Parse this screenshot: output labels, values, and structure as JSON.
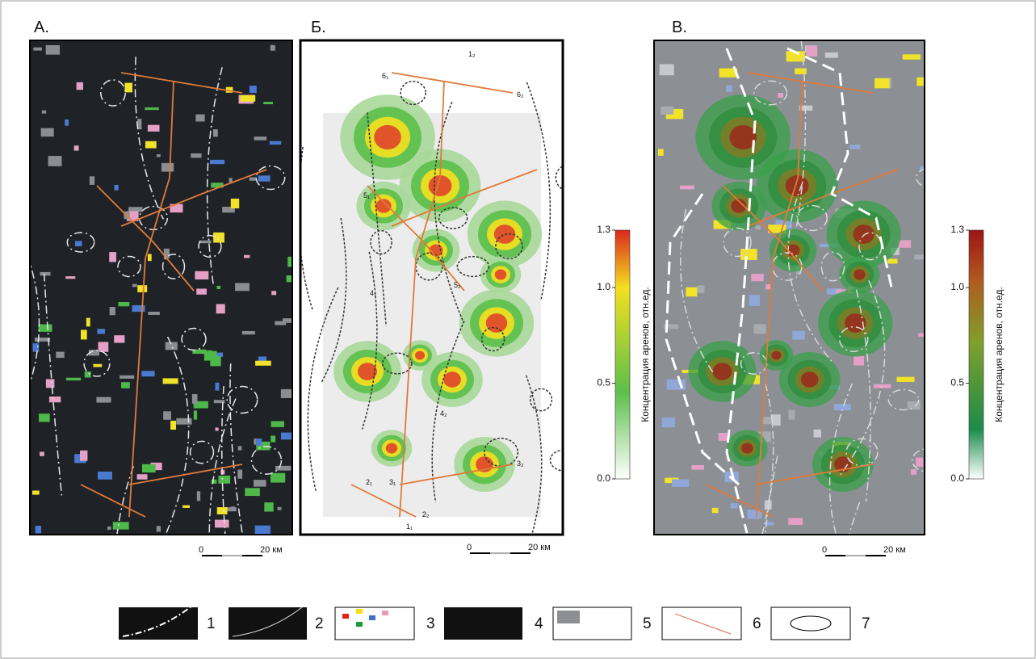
{
  "panels": [
    {
      "label": "А."
    },
    {
      "label": "Б.",
      "map_labels": [
        "1₂",
        "6₁",
        "6₂",
        "5₁",
        "5₂",
        "4₁",
        "4₂",
        "2₁",
        "2₂",
        "3₁",
        "3₂",
        "1₁"
      ]
    },
    {
      "label": "В."
    }
  ],
  "colorbars": [
    {
      "label": "Концентрация аренов, отн.ед.",
      "range": [
        0,
        1.3
      ],
      "ticks": [
        {
          "value": 0,
          "label": "0.0"
        },
        {
          "value": 0.5,
          "label": "0.5"
        },
        {
          "value": 1,
          "label": "1.0"
        },
        {
          "value": 1.3,
          "label": "1.3"
        }
      ]
    },
    {
      "label": "Концентрация аренов, отн.ед.",
      "range": [
        0,
        1.3
      ],
      "ticks": [
        {
          "value": 0,
          "label": "0.0"
        },
        {
          "value": 0.5,
          "label": "0.5"
        },
        {
          "value": 1,
          "label": "1.0"
        },
        {
          "value": 1.3,
          "label": "1.3"
        }
      ]
    }
  ],
  "scale_bar": {
    "start": "0",
    "end": "20 км"
  },
  "legend": [
    "1",
    "2",
    "3",
    "4",
    "5",
    "6",
    "7"
  ]
}
